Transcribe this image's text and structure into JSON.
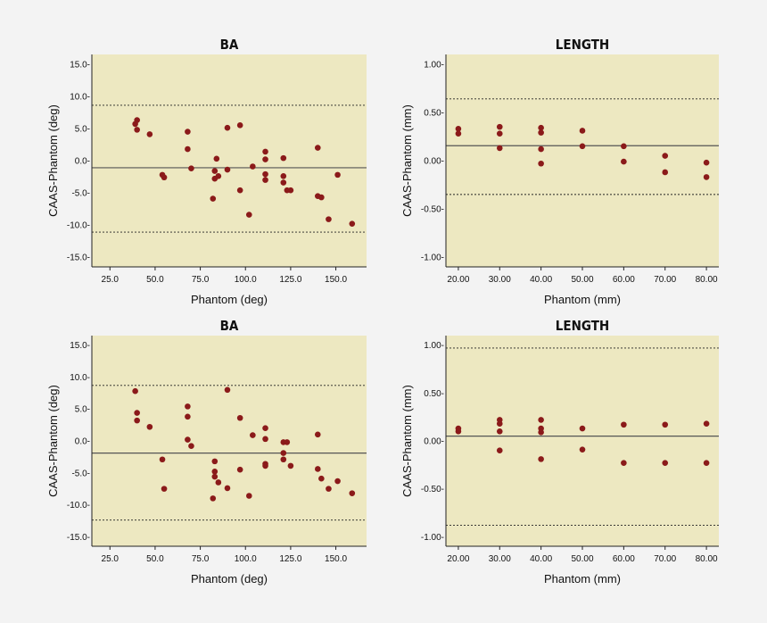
{
  "colors": {
    "background": "#f3f3f3",
    "plot_area": "#ede8c1",
    "points": "#8b1a1a"
  },
  "chart_data": [
    {
      "type": "scatter",
      "title": "BA",
      "xlabel": "Phantom (deg)",
      "ylabel": "CAAS-Phantom (deg)",
      "xlim": [
        15,
        167
      ],
      "ylim": [
        -16.5,
        16.5
      ],
      "xticks": [
        25,
        50,
        75,
        100,
        125,
        150
      ],
      "xtick_labels": [
        "25.0",
        "50.0",
        "75.0",
        "100.0",
        "125.0",
        "150.0"
      ],
      "yticks": [
        15,
        10,
        5,
        0,
        -5,
        -10,
        -15
      ],
      "ytick_labels": [
        "15.0-",
        "10.0-",
        "5.0-",
        "0.0-",
        "-5.0-",
        "-10.0-",
        "-15.0-"
      ],
      "mean": -1.1,
      "loa_upper": 8.6,
      "loa_lower": -11.1,
      "points": [
        [
          39,
          5.7
        ],
        [
          40,
          6.3
        ],
        [
          40,
          4.8
        ],
        [
          47,
          4.1
        ],
        [
          54,
          -2.2
        ],
        [
          55,
          -2.6
        ],
        [
          68,
          4.5
        ],
        [
          68,
          1.8
        ],
        [
          70,
          -1.2
        ],
        [
          82,
          -5.9
        ],
        [
          83,
          -2.8
        ],
        [
          83,
          -1.6
        ],
        [
          84,
          0.3
        ],
        [
          85,
          -2.4
        ],
        [
          90,
          5.1
        ],
        [
          90,
          -1.4
        ],
        [
          97,
          5.5
        ],
        [
          97,
          -4.6
        ],
        [
          102,
          -8.4
        ],
        [
          104,
          -0.9
        ],
        [
          111,
          1.4
        ],
        [
          111,
          0.2
        ],
        [
          111,
          -2.1
        ],
        [
          111,
          -3.0
        ],
        [
          121,
          0.4
        ],
        [
          121,
          -2.4
        ],
        [
          121,
          -3.4
        ],
        [
          123,
          -4.6
        ],
        [
          125,
          -4.6
        ],
        [
          140,
          2.0
        ],
        [
          140,
          -5.5
        ],
        [
          142,
          -5.7
        ],
        [
          146,
          -9.1
        ],
        [
          151,
          -2.2
        ],
        [
          159,
          -9.8
        ]
      ]
    },
    {
      "type": "scatter",
      "title": "LENGTH",
      "xlabel": "Phantom (mm)",
      "ylabel": "CAAS-Phantom (mm)",
      "xlim": [
        17,
        83
      ],
      "ylim": [
        -1.1,
        1.1
      ],
      "xticks": [
        20,
        30,
        40,
        50,
        60,
        70,
        80
      ],
      "xtick_labels": [
        "20.00",
        "30.00",
        "40.00",
        "50.00",
        "60.00",
        "70.00",
        "80.00"
      ],
      "yticks": [
        1,
        0.5,
        0,
        -0.5,
        -1
      ],
      "ytick_labels": [
        "1.00-",
        "0.50-",
        "0.00-",
        "-0.50-",
        "-1.00-"
      ],
      "mean": 0.155,
      "loa_upper": 0.64,
      "loa_lower": -0.35,
      "points": [
        [
          20,
          0.33
        ],
        [
          20,
          0.28
        ],
        [
          30,
          0.35
        ],
        [
          30,
          0.28
        ],
        [
          30,
          0.13
        ],
        [
          40,
          0.34
        ],
        [
          40,
          0.29
        ],
        [
          40,
          0.12
        ],
        [
          40,
          -0.03
        ],
        [
          50,
          0.31
        ],
        [
          50,
          0.15
        ],
        [
          60,
          0.15
        ],
        [
          60,
          -0.01
        ],
        [
          70,
          0.05
        ],
        [
          70,
          -0.12
        ],
        [
          80,
          -0.02
        ],
        [
          80,
          -0.17
        ]
      ]
    },
    {
      "type": "scatter",
      "title": "BA",
      "xlabel": "Phantom (deg)",
      "ylabel": "CAAS-Phantom (deg)",
      "xlim": [
        15,
        167
      ],
      "ylim": [
        -16.5,
        16.5
      ],
      "xticks": [
        25,
        50,
        75,
        100,
        125,
        150
      ],
      "xtick_labels": [
        "25.0",
        "50.0",
        "75.0",
        "100.0",
        "125.0",
        "150.0"
      ],
      "yticks": [
        15,
        10,
        5,
        0,
        -5,
        -10,
        -15
      ],
      "ytick_labels": [
        "15.0-",
        "10.0-",
        "5.0-",
        "0.0-",
        "-5.0-",
        "-10.0-",
        "-15.0-"
      ],
      "mean": -1.9,
      "loa_upper": 8.7,
      "loa_lower": -12.4,
      "points": [
        [
          39,
          7.8
        ],
        [
          40,
          4.4
        ],
        [
          40,
          3.2
        ],
        [
          47,
          2.2
        ],
        [
          54,
          -2.9
        ],
        [
          55,
          -7.5
        ],
        [
          68,
          5.4
        ],
        [
          68,
          3.8
        ],
        [
          68,
          0.2
        ],
        [
          70,
          -0.8
        ],
        [
          82,
          -9.0
        ],
        [
          83,
          -3.2
        ],
        [
          83,
          -4.8
        ],
        [
          83,
          -5.6
        ],
        [
          85,
          -6.5
        ],
        [
          90,
          8.0
        ],
        [
          90,
          -7.4
        ],
        [
          97,
          3.6
        ],
        [
          97,
          -4.5
        ],
        [
          102,
          -8.6
        ],
        [
          104,
          0.9
        ],
        [
          111,
          2.0
        ],
        [
          111,
          0.3
        ],
        [
          111,
          -3.6
        ],
        [
          111,
          -3.9
        ],
        [
          121,
          -0.2
        ],
        [
          121,
          -1.9
        ],
        [
          121,
          -2.9
        ],
        [
          123,
          -0.2
        ],
        [
          125,
          -3.9
        ],
        [
          140,
          1.0
        ],
        [
          140,
          -4.4
        ],
        [
          142,
          -5.9
        ],
        [
          146,
          -7.5
        ],
        [
          151,
          -6.3
        ],
        [
          159,
          -8.2
        ]
      ]
    },
    {
      "type": "scatter",
      "title": "LENGTH",
      "xlabel": "Phantom (mm)",
      "ylabel": "CAAS-Phantom (mm)",
      "xlim": [
        17,
        83
      ],
      "ylim": [
        -1.1,
        1.1
      ],
      "xticks": [
        20,
        30,
        40,
        50,
        60,
        70,
        80
      ],
      "xtick_labels": [
        "20.00",
        "30.00",
        "40.00",
        "50.00",
        "60.00",
        "70.00",
        "80.00"
      ],
      "yticks": [
        1,
        0.5,
        0,
        -0.5,
        -1
      ],
      "ytick_labels": [
        "1.00-",
        "0.50-",
        "0.00-",
        "-0.50-",
        "-1.00-"
      ],
      "mean": 0.05,
      "loa_upper": 0.97,
      "loa_lower": -0.88,
      "points": [
        [
          20,
          0.13
        ],
        [
          20,
          0.1
        ],
        [
          30,
          0.22
        ],
        [
          30,
          0.18
        ],
        [
          30,
          0.1
        ],
        [
          30,
          -0.1
        ],
        [
          40,
          0.22
        ],
        [
          40,
          0.13
        ],
        [
          40,
          0.09
        ],
        [
          40,
          -0.19
        ],
        [
          50,
          0.13
        ],
        [
          50,
          -0.09
        ],
        [
          60,
          0.17
        ],
        [
          60,
          -0.23
        ],
        [
          70,
          0.17
        ],
        [
          70,
          -0.23
        ],
        [
          80,
          0.18
        ],
        [
          80,
          -0.23
        ]
      ]
    }
  ]
}
